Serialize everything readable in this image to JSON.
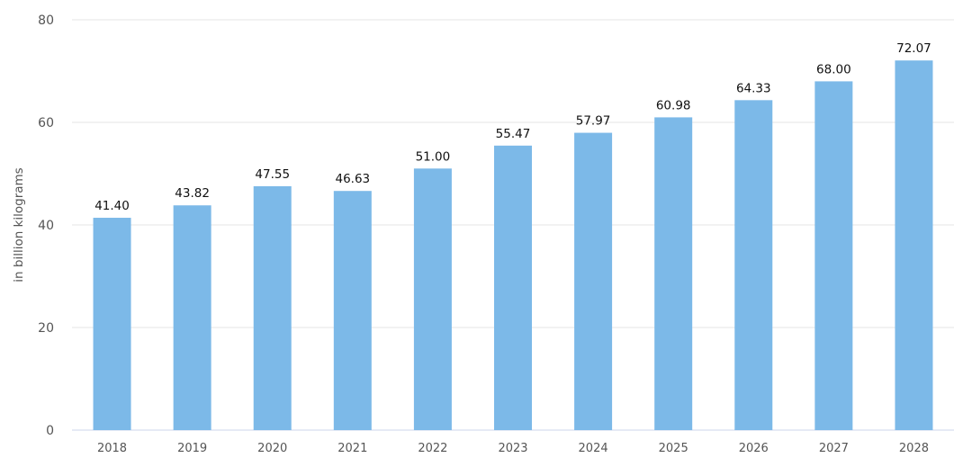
{
  "chart_data": {
    "type": "bar",
    "categories": [
      "2018",
      "2019",
      "2020",
      "2021",
      "2022",
      "2023",
      "2024",
      "2025",
      "2026",
      "2027",
      "2028"
    ],
    "values": [
      41.4,
      43.82,
      47.55,
      46.63,
      51.0,
      55.47,
      57.97,
      60.98,
      64.33,
      68.0,
      72.07
    ],
    "data_labels": [
      "41.40",
      "43.82",
      "47.55",
      "46.63",
      "51.00",
      "55.47",
      "57.97",
      "60.98",
      "64.33",
      "68.00",
      "72.07"
    ],
    "ylabel": "in billion kilograms",
    "xlabel": "",
    "ylim": [
      0,
      80
    ],
    "yticks": [
      0,
      20,
      40,
      60,
      80
    ],
    "grid": true,
    "bar_color": "#7cb9e8"
  }
}
